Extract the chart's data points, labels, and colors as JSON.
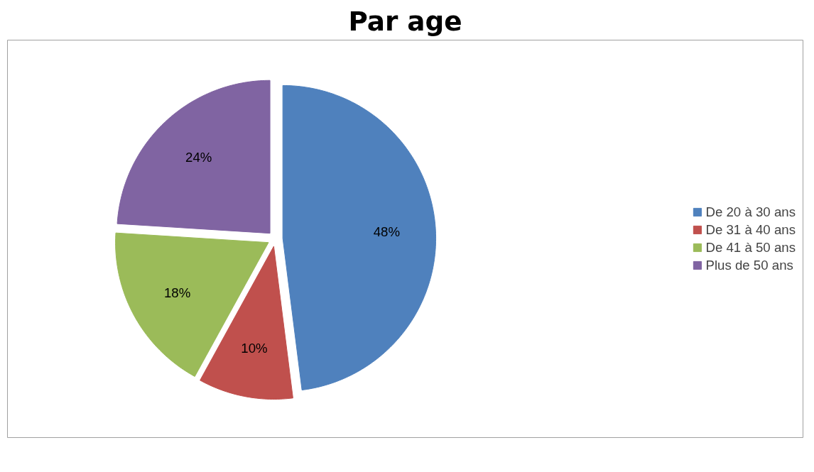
{
  "chart_data": {
    "type": "pie",
    "title": "Par age",
    "categories": [
      "De 20 à 30 ans",
      "De 31 à 40 ans",
      "De 41 à 50 ans",
      "Plus de 50 ans"
    ],
    "values": [
      48,
      10,
      18,
      24
    ],
    "value_labels": [
      "48%",
      "10%",
      "18%",
      "24%"
    ],
    "colors": [
      "#4f81bd",
      "#c0504d",
      "#9bbb59",
      "#8064a2"
    ],
    "legend": "right"
  }
}
